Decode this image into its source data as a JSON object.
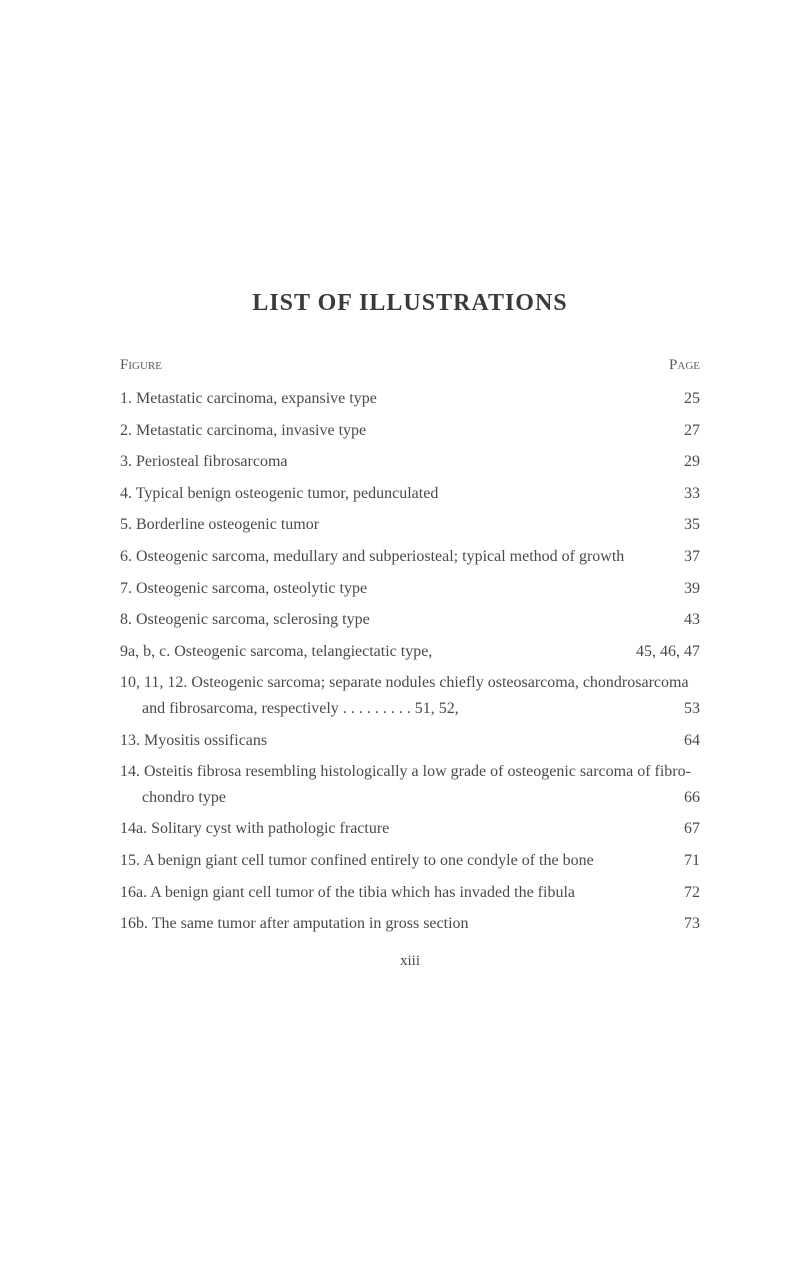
{
  "title": "LIST OF ILLUSTRATIONS",
  "headerLeft": "Figure",
  "headerRight": "Page",
  "entries": [
    {
      "num": "1.",
      "text": "Metastatic carcinoma, expansive type",
      "page": "25",
      "multiline": false
    },
    {
      "num": "2.",
      "text": "Metastatic carcinoma, invasive type",
      "page": "27",
      "multiline": false
    },
    {
      "num": "3.",
      "text": "Periosteal fibrosarcoma",
      "page": "29",
      "multiline": false
    },
    {
      "num": "4.",
      "text": "Typical benign osteogenic tumor, pedunculated",
      "page": "33",
      "multiline": false
    },
    {
      "num": "5.",
      "text": "Borderline osteogenic tumor",
      "page": "35",
      "multiline": false
    },
    {
      "num": "6.",
      "text": "Osteogenic sarcoma, medullary and subperiosteal; typical method of growth",
      "page": "37",
      "multiline": true
    },
    {
      "num": "7.",
      "text": "Osteogenic sarcoma, osteolytic type",
      "page": "39",
      "multiline": false
    },
    {
      "num": "8.",
      "text": "Osteogenic sarcoma, sclerosing type",
      "page": "43",
      "multiline": false
    },
    {
      "num": "9a,",
      "text": "b, c. Osteogenic sarcoma, telangiectatic type,",
      "page": "45, 46, 47",
      "multiline": true,
      "pageRight": true
    },
    {
      "num": "10,",
      "text": "11, 12. Osteogenic sarcoma; separate nodules chiefly osteosarcoma, chondrosarcoma and fibrosarcoma, respectively . . . . . . . . . 51, 52,",
      "page": "53",
      "multiline": true
    },
    {
      "num": "13.",
      "text": "Myositis ossificans",
      "page": "64",
      "multiline": false
    },
    {
      "num": "14.",
      "text": "Osteitis fibrosa resembling histologically a low grade of osteogenic sarcoma of fibro-chondro type",
      "page": "66",
      "multiline": true
    },
    {
      "num": "14a.",
      "text": "Solitary cyst with pathologic fracture",
      "page": "67",
      "multiline": false
    },
    {
      "num": "15.",
      "text": "A benign giant cell tumor confined entirely to one condyle of the bone",
      "page": "71",
      "multiline": true
    },
    {
      "num": "16a.",
      "text": "A benign giant cell tumor of the tibia which has invaded the fibula",
      "page": "72",
      "multiline": true
    },
    {
      "num": "16b.",
      "text": "The same tumor after amputation in gross section",
      "page": "73",
      "multiline": true
    }
  ],
  "footerNum": "xiii"
}
